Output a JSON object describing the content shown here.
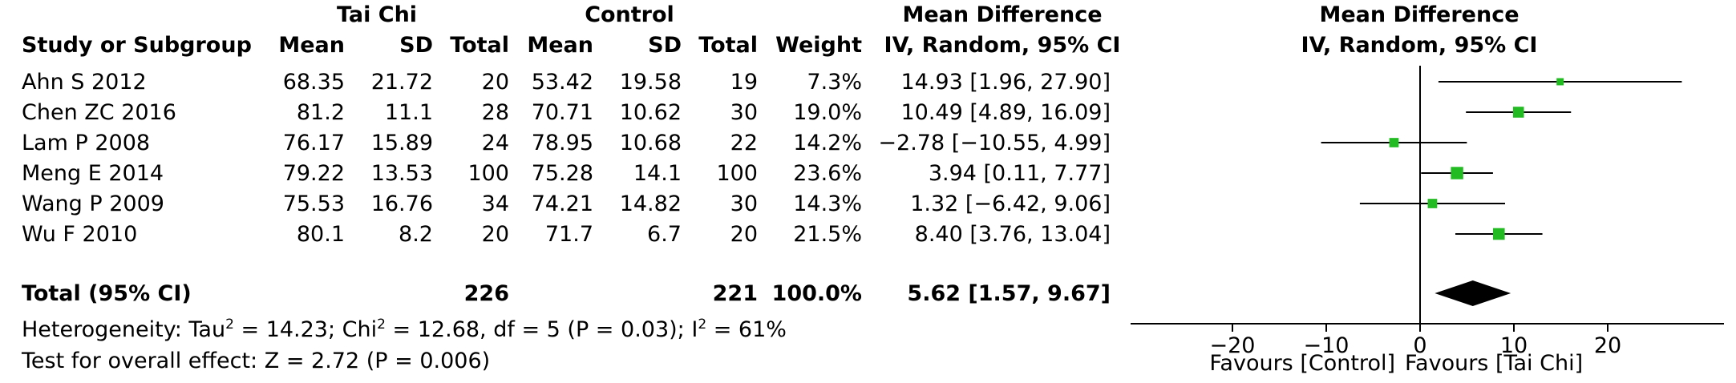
{
  "header": {
    "group1": "Tai Chi",
    "group2": "Control",
    "md_title": "Mean Difference",
    "plot_title": "Mean Difference",
    "plot_subtitle": "IV, Random, 95% CI",
    "col_study": "Study or Subgroup",
    "col_mean1": "Mean",
    "col_sd1": "SD",
    "col_total1": "Total",
    "col_mean2": "Mean",
    "col_sd2": "SD",
    "col_total2": "Total",
    "col_weight": "Weight",
    "col_md": "IV, Random, 95% CI"
  },
  "rows": [
    {
      "study": "Ahn S 2012",
      "mean1": "68.35",
      "sd1": "21.72",
      "total1": "20",
      "mean2": "53.42",
      "sd2": "19.58",
      "total2": "19",
      "weight": "7.3%",
      "md": "14.93 [1.96, 27.90]"
    },
    {
      "study": "Chen ZC 2016",
      "mean1": "81.2",
      "sd1": "11.1",
      "total1": "28",
      "mean2": "70.71",
      "sd2": "10.62",
      "total2": "30",
      "weight": "19.0%",
      "md": "10.49 [4.89, 16.09]"
    },
    {
      "study": "Lam P 2008",
      "mean1": "76.17",
      "sd1": "15.89",
      "total1": "24",
      "mean2": "78.95",
      "sd2": "10.68",
      "total2": "22",
      "weight": "14.2%",
      "md": "−2.78 [−10.55, 4.99]"
    },
    {
      "study": "Meng E 2014",
      "mean1": "79.22",
      "sd1": "13.53",
      "total1": "100",
      "mean2": "75.28",
      "sd2": "14.1",
      "total2": "100",
      "weight": "23.6%",
      "md": "3.94 [0.11, 7.77]"
    },
    {
      "study": "Wang P 2009",
      "mean1": "75.53",
      "sd1": "16.76",
      "total1": "34",
      "mean2": "74.21",
      "sd2": "14.82",
      "total2": "30",
      "weight": "14.3%",
      "md": "1.32 [−6.42, 9.06]"
    },
    {
      "study": "Wu F 2010",
      "mean1": "80.1",
      "sd1": "8.2",
      "total1": "20",
      "mean2": "71.7",
      "sd2": "6.7",
      "total2": "20",
      "weight": "21.5%",
      "md": "8.40 [3.76, 13.04]"
    }
  ],
  "total_row": {
    "label": "Total (95% CI)",
    "total1": "226",
    "total2": "221",
    "weight": "100.0%",
    "md": "5.62 [1.57, 9.67]"
  },
  "heterogeneity": {
    "p1": "Heterogeneity: Tau",
    "s1": "2",
    "p2": " = 14.23; Chi",
    "s2": "2",
    "p3": " = 12.68, df = 5 (P = 0.03); I",
    "s3": "2",
    "p4": " = 61%"
  },
  "overall_effect": "Test for overall effect: Z = 2.72 (P = 0.006)",
  "axis": {
    "ticks": [
      -20,
      -10,
      0,
      10,
      20
    ],
    "tick_labels": [
      "−20",
      "−10",
      "0",
      "10",
      "20"
    ],
    "favours_left": "Favours [Control]",
    "favours_right": "Favours [Tai Chi]"
  },
  "colors": {
    "marker": "#22bb22",
    "diamond": "#000000",
    "line": "#000000"
  },
  "chart_data": {
    "type": "forest",
    "xlim": [
      -30,
      30
    ],
    "studies": [
      {
        "name": "Ahn S 2012",
        "md": 14.93,
        "lo": 1.96,
        "hi": 27.9,
        "weight": 7.3
      },
      {
        "name": "Chen ZC 2016",
        "md": 10.49,
        "lo": 4.89,
        "hi": 16.09,
        "weight": 19.0
      },
      {
        "name": "Lam P 2008",
        "md": -2.78,
        "lo": -10.55,
        "hi": 4.99,
        "weight": 14.2
      },
      {
        "name": "Meng E 2014",
        "md": 3.94,
        "lo": 0.11,
        "hi": 7.77,
        "weight": 23.6
      },
      {
        "name": "Wang P 2009",
        "md": 1.32,
        "lo": -6.42,
        "hi": 9.06,
        "weight": 14.3
      },
      {
        "name": "Wu F 2010",
        "md": 8.4,
        "lo": 3.76,
        "hi": 13.04,
        "weight": 21.5
      }
    ],
    "pooled": {
      "md": 5.62,
      "lo": 1.57,
      "hi": 9.67
    }
  }
}
